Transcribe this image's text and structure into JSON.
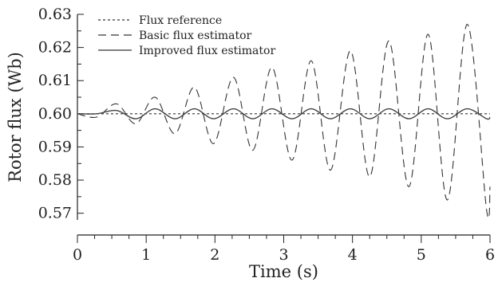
{
  "chart_data": {
    "type": "line",
    "xlabel": "Time (s)",
    "ylabel": "Rotor flux (Wb)",
    "xlim": [
      0,
      6
    ],
    "ylim": [
      0.568,
      0.63
    ],
    "xticks": [
      "0",
      "1",
      "2",
      "3",
      "4",
      "5",
      "6"
    ],
    "yticks": [
      "0.57",
      "0.58",
      "0.59",
      "0.60",
      "0.61",
      "0.62",
      "0.63"
    ],
    "grid": false,
    "legend_position": "top-left",
    "series": [
      {
        "name": "Flux reference",
        "style": "dotted",
        "x": [
          0,
          6
        ],
        "y": [
          0.6,
          0.6
        ]
      },
      {
        "name": "Basic flux estimator",
        "style": "dashed",
        "x": [
          0.0,
          0.28,
          0.57,
          0.85,
          1.13,
          1.42,
          1.7,
          1.98,
          2.27,
          2.55,
          2.83,
          3.12,
          3.4,
          3.68,
          3.97,
          4.25,
          4.53,
          4.82,
          5.1,
          5.38,
          5.67,
          5.95,
          6.0
        ],
        "y": [
          0.6,
          0.599,
          0.603,
          0.597,
          0.605,
          0.594,
          0.608,
          0.591,
          0.611,
          0.589,
          0.614,
          0.586,
          0.616,
          0.583,
          0.619,
          0.581,
          0.622,
          0.578,
          0.624,
          0.574,
          0.627,
          0.571,
          0.578
        ]
      },
      {
        "name": "Improved flux estimator",
        "style": "solid",
        "x": [
          0.0,
          0.28,
          0.57,
          0.85,
          1.13,
          1.42,
          1.7,
          1.98,
          2.27,
          2.55,
          2.83,
          3.12,
          3.4,
          3.68,
          3.97,
          4.25,
          4.53,
          4.82,
          5.1,
          5.38,
          5.67,
          5.95,
          6.0
        ],
        "y": [
          0.6,
          0.6,
          0.601,
          0.5985,
          0.6015,
          0.5985,
          0.6015,
          0.5985,
          0.6015,
          0.5985,
          0.6015,
          0.5985,
          0.6015,
          0.5985,
          0.6015,
          0.5985,
          0.6015,
          0.5985,
          0.6015,
          0.5985,
          0.6015,
          0.5985,
          0.599
        ]
      }
    ]
  }
}
